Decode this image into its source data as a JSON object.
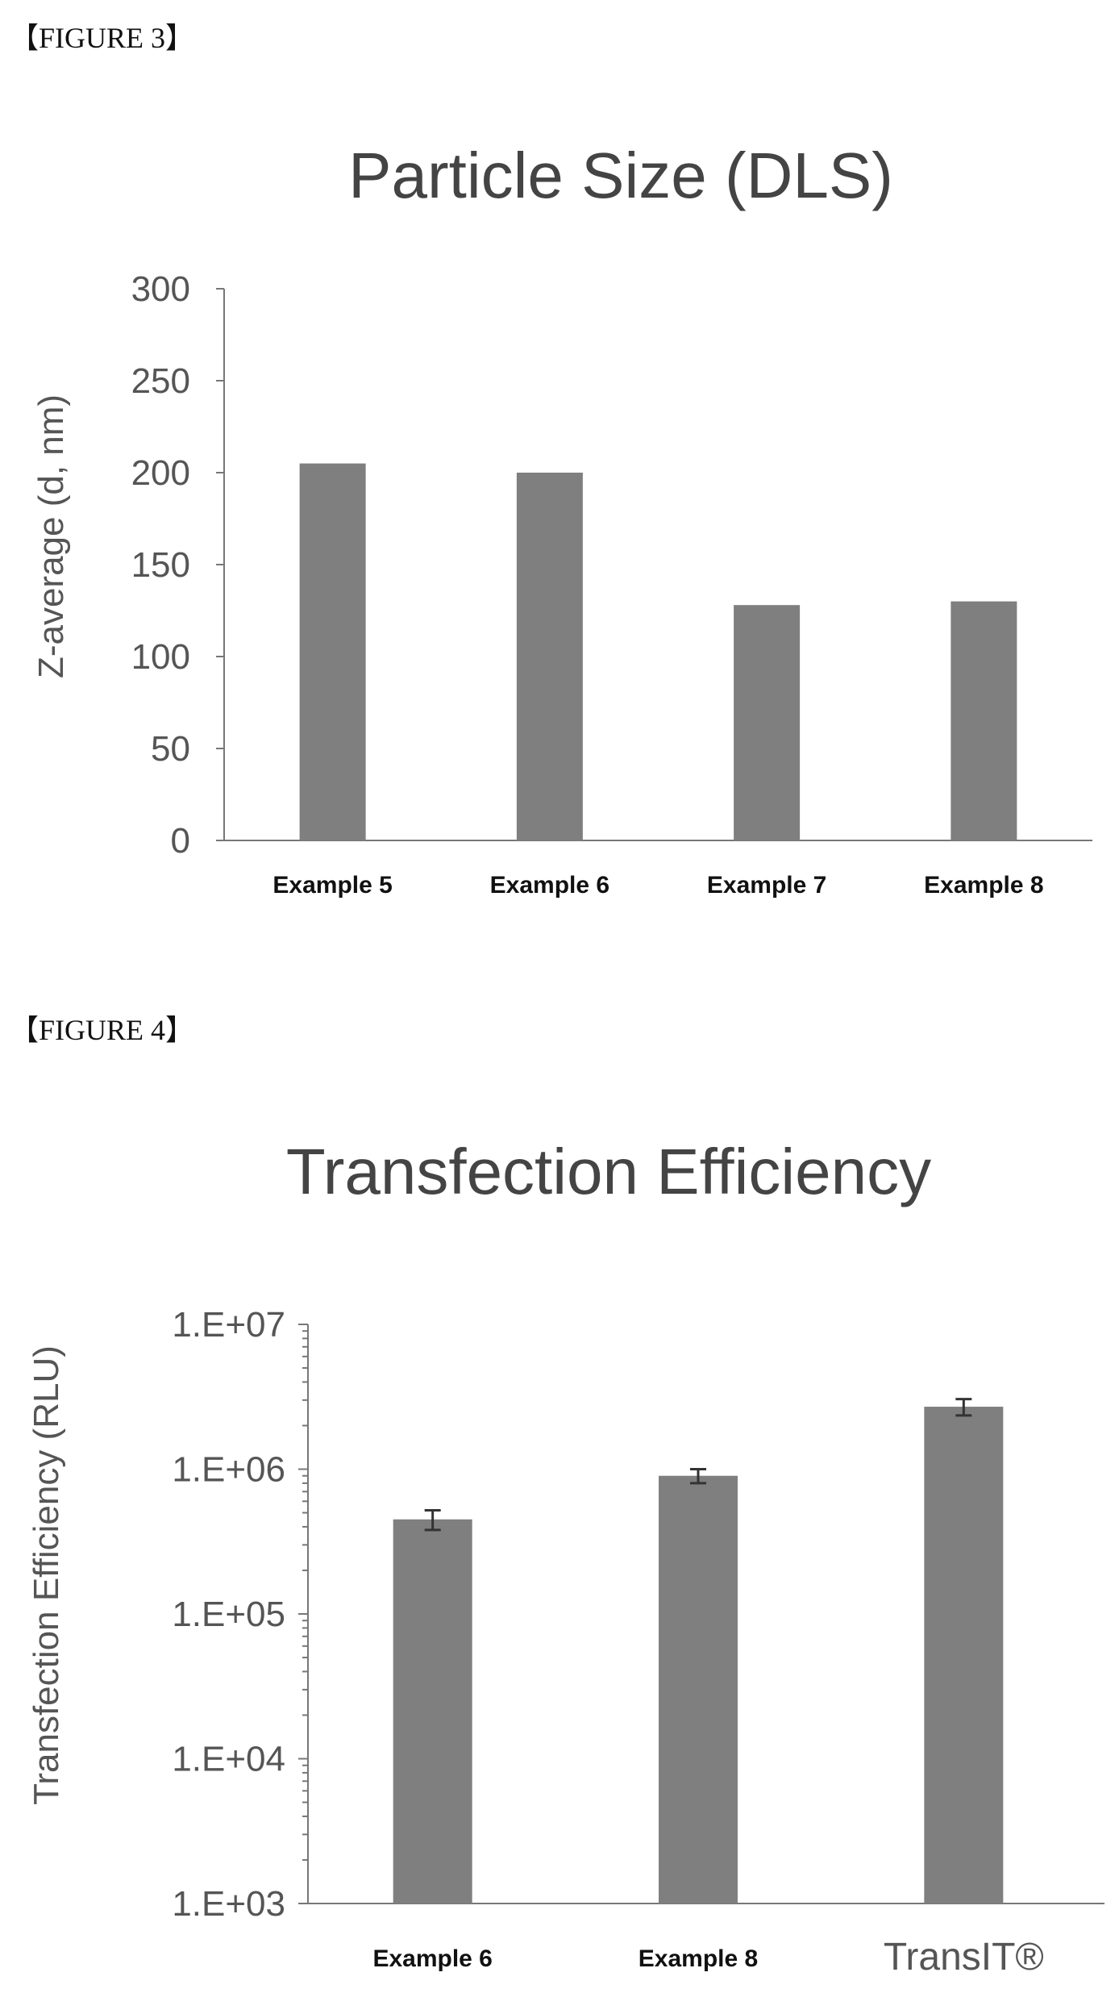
{
  "figure3": {
    "label": "【FIGURE 3】"
  },
  "figure4": {
    "label": "【FIGURE 4】"
  },
  "chart_data": [
    {
      "type": "bar",
      "title": "Particle Size (DLS)",
      "ylabel": "Z-average (d, nm)",
      "xlabel": "",
      "categories": [
        "Example 5",
        "Example 6",
        "Example 7",
        "Example 8"
      ],
      "values": [
        205,
        200,
        128,
        130
      ],
      "ylim": [
        0,
        300
      ],
      "yticks": [
        0,
        50,
        100,
        150,
        200,
        250,
        300
      ],
      "ytick_labels": [
        "0",
        "50",
        "100",
        "150",
        "200",
        "250",
        "300"
      ],
      "grid": false,
      "bar_color": "#7f7f7f"
    },
    {
      "type": "bar",
      "title": "Transfection Efficiency",
      "ylabel": "Transfection Efficiency (RLU)",
      "xlabel": "",
      "scale": "log",
      "categories": [
        "Example 6",
        "Example 8",
        "TransIT®"
      ],
      "values": [
        450000,
        900000,
        2700000
      ],
      "errors": [
        70000,
        100000,
        350000
      ],
      "ylim": [
        1000,
        10000000
      ],
      "yticks": [
        1000,
        10000,
        100000,
        1000000,
        10000000
      ],
      "ytick_labels": [
        "1.E+03",
        "1.E+04",
        "1.E+05",
        "1.E+06",
        "1.E+07"
      ],
      "grid": false,
      "bar_color": "#7f7f7f"
    }
  ]
}
